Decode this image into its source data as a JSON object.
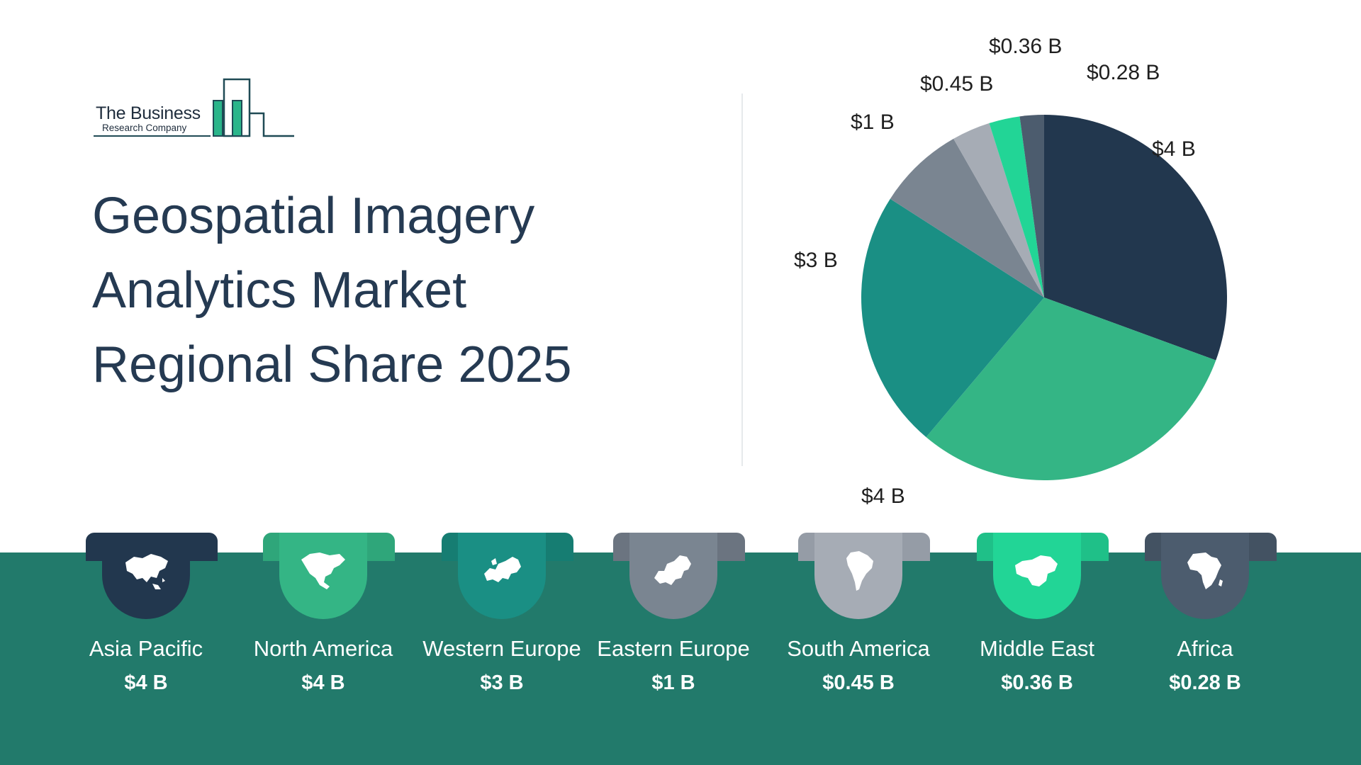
{
  "logo": {
    "line1": "The Business",
    "line2": "Research Company"
  },
  "title": {
    "line1": "Geospatial Imagery",
    "line2": "Analytics Market",
    "line3": "Regional Share 2025"
  },
  "colors": {
    "asia_pacific": "#22374e",
    "north_america": "#34b585",
    "western_europe": "#1a8f84",
    "eastern_europe": "#7a8591",
    "south_america": "#a6acb5",
    "middle_east": "#22d596",
    "africa": "#4c5c6e",
    "band": "#227a6b"
  },
  "chart_data": {
    "type": "pie",
    "title": "Geospatial Imagery Analytics Market Regional Share 2025",
    "start_angle": "12 o'clock, clockwise",
    "slices": [
      {
        "name": "Asia Pacific",
        "value": 4,
        "label": "$4 B",
        "color": "#22374e",
        "share": 0.315
      },
      {
        "name": "North America",
        "value": 4,
        "label": "$4 B",
        "color": "#34b585",
        "share": 0.315
      },
      {
        "name": "Western Europe",
        "value": 3,
        "label": "$3 B",
        "color": "#1a8f84",
        "share": 0.236
      },
      {
        "name": "Eastern Europe",
        "value": 1,
        "label": "$1 B",
        "color": "#7a8591",
        "share": 0.079
      },
      {
        "name": "South America",
        "value": 0.45,
        "label": "$0.45 B",
        "color": "#a6acb5",
        "share": 0.035
      },
      {
        "name": "Middle East",
        "value": 0.36,
        "label": "$0.36 B",
        "color": "#22d596",
        "share": 0.028
      },
      {
        "name": "Africa",
        "value": 0.28,
        "label": "$0.28 B",
        "color": "#4c5c6e",
        "share": 0.022
      }
    ]
  },
  "regions": [
    {
      "name": "Asia Pacific",
      "value": "$4 B",
      "icon": "asia-map-icon",
      "color": "#22374e",
      "tab_color": "#22374e"
    },
    {
      "name": "North America",
      "value": "$4 B",
      "icon": "north-america-map-icon",
      "color": "#34b585",
      "tab_color": "#2fa67a"
    },
    {
      "name": "Western Europe",
      "value": "$3 B",
      "icon": "western-europe-map-icon",
      "color": "#1a8f84",
      "tab_color": "#167d72"
    },
    {
      "name": "Eastern Europe",
      "value": "$1 B",
      "icon": "eastern-europe-map-icon",
      "color": "#7a8591",
      "tab_color": "#6b7480"
    },
    {
      "name": "South America",
      "value": "$0.45 B",
      "icon": "south-america-map-icon",
      "color": "#a6acb5",
      "tab_color": "#959ca6"
    },
    {
      "name": "Middle East",
      "value": "$0.36 B",
      "icon": "middle-east-map-icon",
      "color": "#22d596",
      "tab_color": "#1fc088"
    },
    {
      "name": "Africa",
      "value": "$0.28 B",
      "icon": "africa-map-icon",
      "color": "#4c5c6e",
      "tab_color": "#435262"
    }
  ]
}
